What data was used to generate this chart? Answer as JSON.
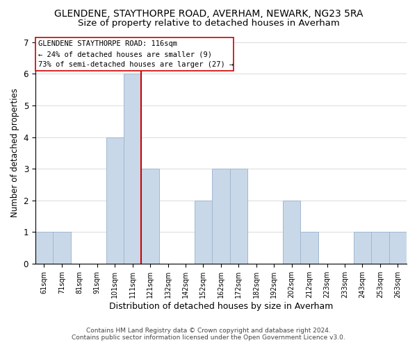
{
  "title": "GLENDENE, STAYTHORPE ROAD, AVERHAM, NEWARK, NG23 5RA",
  "subtitle": "Size of property relative to detached houses in Averham",
  "xlabel": "Distribution of detached houses by size in Averham",
  "ylabel": "Number of detached properties",
  "bin_labels": [
    "61sqm",
    "71sqm",
    "81sqm",
    "91sqm",
    "101sqm",
    "111sqm",
    "121sqm",
    "132sqm",
    "142sqm",
    "152sqm",
    "162sqm",
    "172sqm",
    "182sqm",
    "192sqm",
    "202sqm",
    "212sqm",
    "223sqm",
    "233sqm",
    "243sqm",
    "253sqm",
    "263sqm"
  ],
  "values": [
    1,
    1,
    0,
    0,
    4,
    6,
    3,
    0,
    0,
    2,
    3,
    3,
    0,
    0,
    2,
    1,
    0,
    0,
    1,
    1,
    1
  ],
  "bar_color": "#c8d8e8",
  "bar_edgecolor": "#a0b8d0",
  "highlight_index": 6,
  "highlight_line_color": "#cc0000",
  "ylim": [
    0,
    7
  ],
  "yticks": [
    0,
    1,
    2,
    3,
    4,
    5,
    6,
    7
  ],
  "annotation_title": "GLENDENE STAYTHORPE ROAD: 116sqm",
  "annotation_line1": "← 24% of detached houses are smaller (9)",
  "annotation_line2": "73% of semi-detached houses are larger (27) →",
  "footer_line1": "Contains HM Land Registry data © Crown copyright and database right 2024.",
  "footer_line2": "Contains public sector information licensed under the Open Government Licence v3.0.",
  "background_color": "#ffffff",
  "title_fontsize": 10,
  "subtitle_fontsize": 9.5
}
